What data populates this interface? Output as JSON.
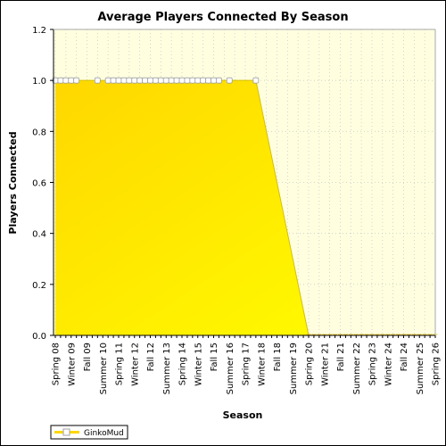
{
  "chart_data": {
    "type": "area",
    "title": "Average Players Connected By Season",
    "xlabel": "Season",
    "ylabel": "Players Connected",
    "ylim": [
      0,
      1.2
    ],
    "yticks": [
      "0.0",
      "0.2",
      "0.4",
      "0.6",
      "0.8",
      "1.0",
      "1.2"
    ],
    "grid": true,
    "legend_position": "bottom-left",
    "categories": [
      "Spring 08",
      "Summer 08",
      "Fall 08",
      "Winter 09",
      "Spring 09",
      "Summer 09",
      "Fall 09",
      "Winter 10",
      "Spring 10",
      "Summer 10",
      "Fall 10",
      "Winter 11",
      "Spring 11",
      "Summer 11",
      "Fall 11",
      "Winter 12",
      "Spring 12",
      "Summer 12",
      "Fall 12",
      "Winter 13",
      "Spring 13",
      "Summer 13",
      "Fall 13",
      "Winter 14",
      "Spring 14",
      "Summer 14",
      "Fall 14",
      "Winter 15",
      "Spring 15",
      "Summer 15",
      "Fall 15",
      "Winter 16",
      "Spring 16",
      "Summer 16",
      "Fall 16",
      "Winter 17",
      "Spring 17",
      "Summer 17",
      "Fall 17",
      "Winter 18",
      "Spring 18",
      "Summer 18",
      "Fall 18",
      "Winter 19",
      "Spring 19",
      "Summer 19",
      "Fall 19",
      "Winter 20",
      "Spring 20",
      "Summer 20",
      "Fall 20",
      "Winter 21",
      "Spring 21",
      "Summer 21",
      "Fall 21",
      "Winter 22",
      "Spring 22",
      "Summer 22",
      "Fall 22",
      "Winter 23",
      "Spring 23",
      "Summer 23",
      "Fall 23",
      "Winter 24",
      "Spring 24",
      "Summer 24",
      "Fall 24",
      "Winter 25",
      "Spring 25",
      "Summer 25",
      "Fall 25",
      "Winter 26",
      "Spring 26"
    ],
    "series": [
      {
        "name": "GinkoMud",
        "color": "#ffd700",
        "values": [
          1,
          1,
          1,
          1,
          1,
          null,
          null,
          null,
          1,
          null,
          1,
          1,
          1,
          1,
          1,
          1,
          1,
          1,
          1,
          1,
          1,
          1,
          1,
          1,
          1,
          1,
          1,
          1,
          1,
          1,
          1,
          1,
          null,
          1,
          null,
          null,
          null,
          null,
          1,
          null,
          null,
          null,
          null,
          null,
          null,
          null,
          null,
          null,
          0,
          0,
          0,
          0,
          0,
          0,
          0,
          0,
          0,
          0,
          0,
          0,
          0,
          0,
          0,
          0,
          0,
          0,
          0,
          0,
          0,
          0,
          0,
          0,
          0
        ]
      }
    ]
  },
  "colors": {
    "plot_background": "#ffffe0",
    "fill_light": "#ffd700",
    "fill_dark": "#ffff00",
    "grid": "#c8c8c8",
    "marker_fill": "#ffffff",
    "marker_stroke": "#a0a0a0"
  }
}
